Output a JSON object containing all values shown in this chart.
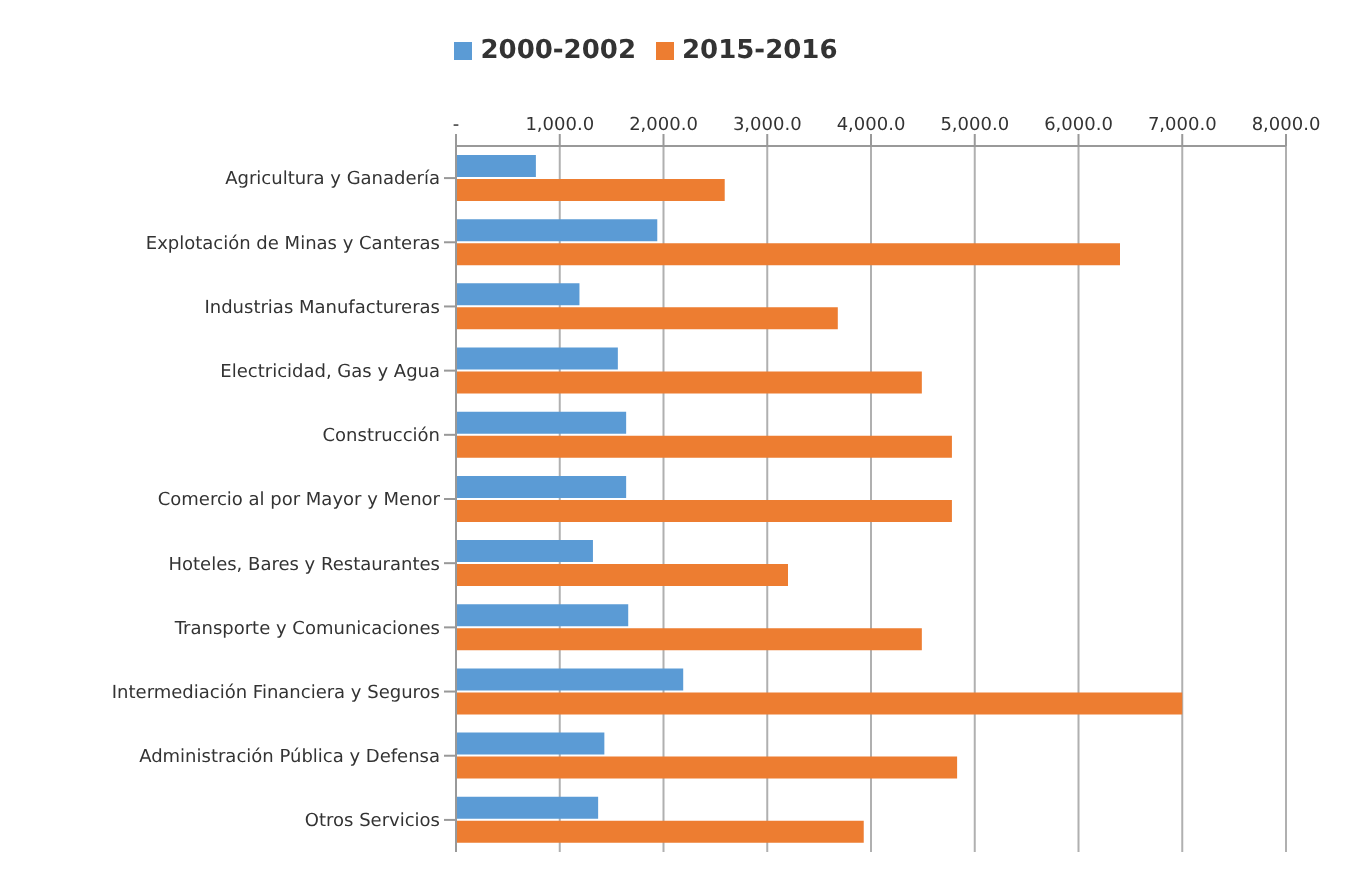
{
  "chart_data": {
    "type": "bar",
    "orientation": "horizontal",
    "legend": "top",
    "grid": "x",
    "categories": [
      "Agricultura y Ganadería",
      "Explotación de Minas y Canteras",
      "Industrias Manufactureras",
      "Electricidad, Gas y Agua",
      "Construcción",
      "Comercio al por Mayor y Menor",
      "Hoteles, Bares y Restaurantes",
      "Transporte y Comunicaciones",
      "Intermediación Financiera y Seguros",
      "Administración Pública y Defensa",
      "Otros Servicios"
    ],
    "series": [
      {
        "name": "2000-2002",
        "color": "#5b9bd5",
        "values": [
          770,
          1940,
          1190,
          1560,
          1640,
          1640,
          1320,
          1660,
          2190,
          1430,
          1370
        ]
      },
      {
        "name": "2015-2016",
        "color": "#ed7d31",
        "values": [
          2590,
          6400,
          3680,
          4490,
          4780,
          4780,
          3200,
          4490,
          7000,
          4830,
          3930
        ]
      }
    ],
    "xlim": [
      0,
      8000
    ],
    "xticks": [
      {
        "value": 0,
        "label": "-"
      },
      {
        "value": 1000,
        "label": "1,000.0"
      },
      {
        "value": 2000,
        "label": "2,000.0"
      },
      {
        "value": 3000,
        "label": "3,000.0"
      },
      {
        "value": 4000,
        "label": "4,000.0"
      },
      {
        "value": 5000,
        "label": "5,000.0"
      },
      {
        "value": 6000,
        "label": "6,000.0"
      },
      {
        "value": 7000,
        "label": "7,000.0"
      },
      {
        "value": 8000,
        "label": "8,000.0"
      }
    ]
  }
}
